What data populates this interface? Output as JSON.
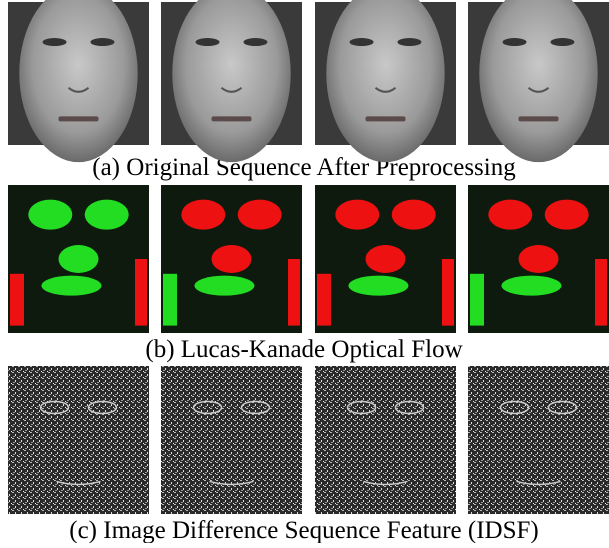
{
  "rows": [
    {
      "caption": "(a) Original Sequence After Preprocessing"
    },
    {
      "caption": "(b) Lucas-Kanade Optical Flow"
    },
    {
      "caption": "(c) Image Difference Sequence Feature (IDSF)"
    }
  ]
}
